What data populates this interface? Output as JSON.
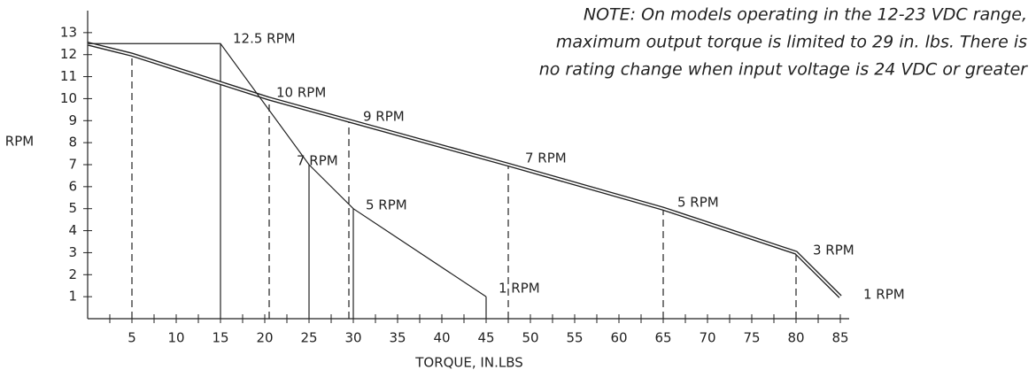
{
  "chart_data": {
    "type": "line",
    "note": [
      "NOTE: On models operating in the 12-23 VDC range,",
      "maximum output torque is limited to 29 in. lbs. There is",
      "no rating change when input voltage is 24 VDC or greater"
    ],
    "xlabel": "TORQUE, IN.LBS",
    "ylabel": "RPM",
    "xlim": [
      0,
      86
    ],
    "ylim": [
      0,
      14
    ],
    "xticks": [
      5,
      10,
      15,
      20,
      25,
      30,
      35,
      40,
      45,
      50,
      55,
      60,
      65,
      70,
      75,
      80,
      85
    ],
    "yticks": [
      1,
      2,
      3,
      4,
      5,
      6,
      7,
      8,
      9,
      10,
      11,
      12,
      13
    ],
    "series": [
      {
        "style": "double",
        "x": [
          0,
          5,
          20.5,
          29.5,
          47.5,
          65,
          80,
          85
        ],
        "values": [
          12.5,
          12,
          10,
          9,
          7,
          5,
          3,
          1
        ]
      },
      {
        "style": "single",
        "x": [
          0,
          15,
          25,
          30,
          45
        ],
        "values": [
          12.5,
          12.5,
          7,
          5,
          1
        ]
      }
    ],
    "drop_lines": [
      {
        "style": "dashed",
        "x": 5,
        "y": 12
      },
      {
        "style": "dashed",
        "x": 20.5,
        "y": 10
      },
      {
        "style": "dashed",
        "x": 29.5,
        "y": 9
      },
      {
        "style": "dashed",
        "x": 47.5,
        "y": 7
      },
      {
        "style": "dashed",
        "x": 65,
        "y": 5
      },
      {
        "style": "dashed",
        "x": 80,
        "y": 3
      },
      {
        "style": "solid",
        "x": 15,
        "y": 12.5
      },
      {
        "style": "solid",
        "x": 25,
        "y": 7
      },
      {
        "style": "solid",
        "x": 30,
        "y": 5
      },
      {
        "style": "solid",
        "x": 45,
        "y": 1
      }
    ],
    "annotations": [
      "12.5  RPM",
      "10  RPM",
      "9  RPM",
      "7  RPM",
      "5  RPM",
      "1  RPM",
      "7  RPM",
      "5  RPM",
      "3  RPM",
      "1  RPM"
    ]
  }
}
